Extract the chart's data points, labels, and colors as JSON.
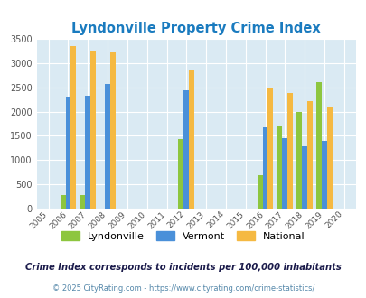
{
  "title": "Lyndonville Property Crime Index",
  "years": [
    2005,
    2006,
    2007,
    2008,
    2009,
    2010,
    2011,
    2012,
    2013,
    2014,
    2015,
    2016,
    2017,
    2018,
    2019,
    2020
  ],
  "lyndonville": {
    "2006": 280,
    "2007": 280,
    "2012": 1430,
    "2016": 680,
    "2017": 1700,
    "2018": 2000,
    "2019": 2600
  },
  "vermont": {
    "2006": 2300,
    "2007": 2330,
    "2008": 2560,
    "2012": 2430,
    "2016": 1670,
    "2017": 1450,
    "2018": 1290,
    "2019": 1400
  },
  "national": {
    "2006": 3340,
    "2007": 3260,
    "2008": 3210,
    "2012": 2860,
    "2016": 2470,
    "2017": 2380,
    "2018": 2210,
    "2019": 2110
  },
  "bar_width": 0.27,
  "plot_bg_color": "#daeaf3",
  "ylim": [
    0,
    3500
  ],
  "yticks": [
    0,
    500,
    1000,
    1500,
    2000,
    2500,
    3000,
    3500
  ],
  "footnote1": "Crime Index corresponds to incidents per 100,000 inhabitants",
  "footnote2": "© 2025 CityRating.com - https://www.cityrating.com/crime-statistics/",
  "lyndonville_color": "#8dc63f",
  "vermont_color": "#4a90d9",
  "national_color": "#f5b942",
  "title_color": "#1a7bbf",
  "footnote1_color": "#1a1a4a",
  "footnote2_color": "#5588aa"
}
